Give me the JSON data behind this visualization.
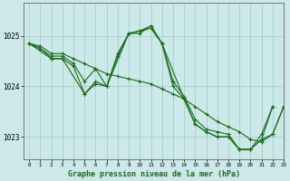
{
  "title": "Graphe pression niveau de la mer (hPa)",
  "bg_color": "#cce8e8",
  "line_color": "#1a6b1a",
  "grid_color": "#99cccc",
  "xlim": [
    -0.5,
    23
  ],
  "ylim": [
    1022.55,
    1025.65
  ],
  "yticks": [
    1023,
    1024,
    1025
  ],
  "xticks": [
    0,
    1,
    2,
    3,
    4,
    5,
    6,
    7,
    8,
    9,
    10,
    11,
    12,
    13,
    14,
    15,
    16,
    17,
    18,
    19,
    20,
    21,
    22,
    23
  ],
  "series": [
    {
      "x": [
        0,
        1,
        2,
        3,
        4,
        5,
        6,
        7,
        8,
        9,
        10,
        11,
        12,
        13,
        14,
        15,
        16,
        17,
        18,
        19,
        20,
        21,
        22,
        23
      ],
      "y": [
        1024.85,
        1024.75,
        1024.6,
        1024.6,
        1024.45,
        1024.1,
        1024.35,
        1024.0,
        1024.65,
        1025.05,
        1025.1,
        1025.15,
        1024.85,
        1024.1,
        1023.8,
        1023.35,
        1023.15,
        1023.1,
        1023.05,
        1022.75,
        1022.75,
        1023.05,
        1023.6,
        null
      ]
    },
    {
      "x": [
        0,
        1,
        2,
        3,
        4,
        5,
        6,
        7,
        8,
        9,
        10,
        11,
        12,
        13,
        14,
        15,
        16,
        17,
        18,
        19,
        20,
        21,
        22
      ],
      "y": [
        1024.85,
        1024.75,
        1024.55,
        1024.55,
        1024.4,
        1023.85,
        1024.05,
        1024.0,
        1024.6,
        1025.05,
        1025.05,
        1025.2,
        1024.85,
        1024.0,
        1023.75,
        1023.25,
        1023.1,
        1023.0,
        1023.0,
        1022.75,
        1022.75,
        1022.95,
        1023.6
      ]
    },
    {
      "x": [
        0,
        1,
        2,
        3,
        4,
        5,
        6,
        7,
        8,
        9,
        10,
        11,
        12,
        13,
        14,
        15,
        16,
        17,
        18,
        19,
        20,
        21,
        22,
        23
      ],
      "y": [
        1024.85,
        1024.8,
        1024.65,
        1024.65,
        1024.55,
        1024.45,
        1024.35,
        1024.25,
        1024.2,
        1024.15,
        1024.1,
        1024.05,
        1023.95,
        1023.85,
        1023.75,
        1023.6,
        1023.45,
        1023.3,
        1023.2,
        1023.1,
        1022.95,
        1022.9,
        1023.05,
        1023.6
      ]
    },
    {
      "x": [
        0,
        2,
        3,
        5,
        6,
        7,
        9,
        10,
        11,
        12,
        14,
        15,
        16,
        17,
        18,
        19,
        20,
        21,
        22,
        23
      ],
      "y": [
        1024.85,
        1024.55,
        1024.55,
        1023.85,
        1024.1,
        1024.0,
        1025.05,
        1025.1,
        1025.2,
        1024.85,
        1023.75,
        1023.25,
        1023.1,
        1023.0,
        1023.0,
        1022.75,
        1022.75,
        1022.95,
        1023.05,
        1023.6
      ]
    }
  ]
}
